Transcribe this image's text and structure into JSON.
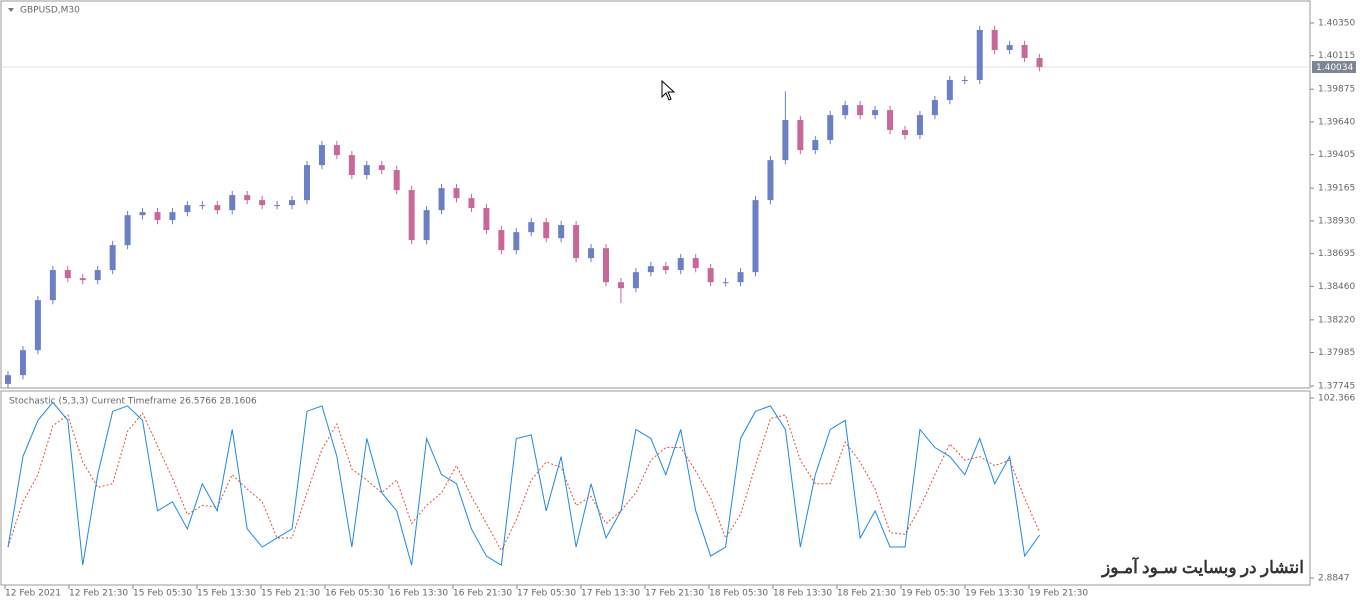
{
  "chart_data": [
    {
      "type": "candlestick",
      "title": "GBPUSD,M30",
      "open": [
        1.3776,
        1.37823,
        1.38002,
        1.38361,
        1.38577,
        1.38519,
        1.38505,
        1.38577,
        1.38756,
        1.38971,
        1.38993,
        1.38936,
        1.38993,
        1.39043,
        1.39043,
        1.39007,
        1.39115,
        1.39079,
        1.39043,
        1.39043,
        1.39079,
        1.3933,
        1.39474,
        1.39402,
        1.39259,
        1.3933,
        1.39295,
        1.39151,
        1.38792,
        1.39007,
        1.39165,
        1.39093,
        1.39022,
        1.38864,
        1.3872,
        1.38849,
        1.38921,
        1.38806,
        1.389,
        1.38663,
        1.38734,
        1.3849,
        1.38447,
        1.38562,
        1.38605,
        1.38577,
        1.38663,
        1.38591,
        1.3849,
        1.3849,
        1.38562,
        1.39079,
        1.39366,
        1.39654,
        1.39438,
        1.3951,
        1.39689,
        1.39761,
        1.39689,
        1.39725,
        1.39582,
        1.39546,
        1.39689,
        1.39797,
        1.39941,
        1.39941,
        1.403,
        1.40156,
        1.40192,
        1.40099
      ],
      "high": [
        1.37853,
        1.38032,
        1.38391,
        1.38607,
        1.38607,
        1.38549,
        1.38607,
        1.38786,
        1.39001,
        1.39023,
        1.39023,
        1.39023,
        1.39073,
        1.39073,
        1.39073,
        1.39145,
        1.39145,
        1.39109,
        1.39073,
        1.39109,
        1.3936,
        1.39504,
        1.39504,
        1.39432,
        1.3936,
        1.3936,
        1.39325,
        1.39181,
        1.39037,
        1.39195,
        1.39195,
        1.39123,
        1.39052,
        1.38894,
        1.38879,
        1.38951,
        1.38951,
        1.3893,
        1.3893,
        1.38764,
        1.38764,
        1.3852,
        1.38592,
        1.38635,
        1.38635,
        1.38693,
        1.38693,
        1.38621,
        1.3852,
        1.38592,
        1.39109,
        1.39396,
        1.3986,
        1.39684,
        1.3954,
        1.39719,
        1.39791,
        1.39791,
        1.39755,
        1.39755,
        1.39612,
        1.39719,
        1.39827,
        1.39971,
        1.39971,
        1.4033,
        1.4033,
        1.40222,
        1.40222,
        1.40129
      ],
      "low": [
        1.3773,
        1.37793,
        1.37972,
        1.38331,
        1.38489,
        1.38475,
        1.38475,
        1.38547,
        1.38726,
        1.38941,
        1.38906,
        1.38906,
        1.38963,
        1.39013,
        1.38977,
        1.38977,
        1.39049,
        1.39013,
        1.39013,
        1.39013,
        1.39049,
        1.393,
        1.39372,
        1.39229,
        1.39229,
        1.39265,
        1.39121,
        1.38762,
        1.38762,
        1.38977,
        1.39063,
        1.38992,
        1.38834,
        1.3869,
        1.3869,
        1.38819,
        1.38776,
        1.38776,
        1.38633,
        1.38633,
        1.3846,
        1.3834,
        1.38417,
        1.38532,
        1.38547,
        1.38547,
        1.38561,
        1.3846,
        1.3846,
        1.3846,
        1.38532,
        1.39049,
        1.39336,
        1.39408,
        1.39408,
        1.3948,
        1.39659,
        1.39659,
        1.39659,
        1.39552,
        1.39516,
        1.39516,
        1.39659,
        1.39767,
        1.39911,
        1.39911,
        1.40126,
        1.40126,
        1.40069,
        1.40004
      ],
      "close": [
        1.37823,
        1.38002,
        1.38361,
        1.38577,
        1.38519,
        1.38505,
        1.38577,
        1.38756,
        1.38971,
        1.38993,
        1.38936,
        1.38993,
        1.39043,
        1.39043,
        1.39007,
        1.39115,
        1.39079,
        1.39043,
        1.39043,
        1.39079,
        1.3933,
        1.39474,
        1.39402,
        1.39259,
        1.3933,
        1.39295,
        1.39151,
        1.38792,
        1.39007,
        1.39165,
        1.39093,
        1.39022,
        1.38864,
        1.3872,
        1.38849,
        1.38921,
        1.38806,
        1.389,
        1.38663,
        1.38734,
        1.3849,
        1.38447,
        1.38562,
        1.38605,
        1.38577,
        1.38663,
        1.38591,
        1.3849,
        1.3849,
        1.38562,
        1.39079,
        1.39366,
        1.39654,
        1.39438,
        1.3951,
        1.39689,
        1.39761,
        1.39689,
        1.39725,
        1.39582,
        1.39546,
        1.39689,
        1.39797,
        1.39941,
        1.39941,
        1.403,
        1.40156,
        1.40192,
        1.40099,
        1.40034
      ],
      "up_color": "#6b7fc4",
      "down_color": "#c8689a",
      "ylim": [
        1.37745,
        1.4035
      ],
      "yticks": [
        {
          "value": 1.4035,
          "label": "1.40350"
        },
        {
          "value": 1.40115,
          "label": "1.40115"
        },
        1.39875,
        {
          "value": 1.3964,
          "label": "1.39640"
        },
        1.39405,
        1.39165,
        {
          "value": 1.3893,
          "label": "1.38930"
        },
        1.38695,
        {
          "value": 1.3846,
          "label": "1.38460"
        },
        {
          "value": 1.3822,
          "label": "1.38220"
        },
        1.37985,
        1.37745
      ],
      "current_price": 1.40034,
      "xtick_labels": [
        "12 Feb 2021",
        "12 Feb 21:30",
        "15 Feb 05:30",
        "15 Feb 13:30",
        "15 Feb 21:30",
        "16 Feb 05:30",
        "16 Feb 13:30",
        "16 Feb 21:30",
        "17 Feb 05:30",
        "17 Feb 13:30",
        "17 Feb 21:30",
        "18 Feb 05:30",
        "18 Feb 13:30",
        "18 Feb 21:30",
        "19 Feb 05:30",
        "19 Feb 13:30",
        "19 Feb 21:30"
      ]
    },
    {
      "type": "line",
      "title": "Stochastic (5,3,3) Current Timeframe 26.5766 28.1606",
      "ylim": [
        2.8847,
        102.366
      ],
      "yticks": [
        102.366,
        2.8847
      ],
      "series": [
        {
          "color": "#1e88e5",
          "dashed": false,
          "values": [
            20,
            70,
            90,
            100,
            90,
            10,
            60,
            95,
            98,
            90,
            40,
            45,
            30,
            55,
            40,
            85,
            30,
            20,
            25,
            30,
            95,
            98,
            70,
            20,
            80,
            50,
            40,
            10,
            80,
            60,
            55,
            30,
            15,
            10,
            80,
            82,
            40,
            70,
            20,
            55,
            25,
            40,
            85,
            80,
            60,
            85,
            40,
            15,
            20,
            80,
            95,
            98,
            85,
            20,
            60,
            85,
            90,
            25,
            40,
            20,
            20,
            85,
            75,
            70,
            60,
            80,
            55,
            70,
            15,
            26.5766
          ]
        },
        {
          "color": "#e0503a",
          "dashed": true,
          "values": [
            20,
            45,
            60,
            87,
            93,
            67,
            53,
            55,
            84,
            94,
            76,
            58,
            38,
            43,
            42,
            60,
            52,
            45,
            25,
            25,
            50,
            74,
            88,
            63,
            57,
            50,
            57,
            33,
            43,
            50,
            65,
            48,
            33,
            18,
            35,
            57,
            67,
            64,
            43,
            48,
            33,
            40,
            50,
            68,
            75,
            75,
            62,
            47,
            25,
            38,
            65,
            91,
            93,
            68,
            55,
            55,
            78,
            67,
            52,
            28,
            27,
            42,
            60,
            77,
            68,
            70,
            65,
            68,
            47,
            28.1606
          ]
        }
      ]
    }
  ],
  "watermark": "انتشار در وبسایت سـود آمـوز"
}
